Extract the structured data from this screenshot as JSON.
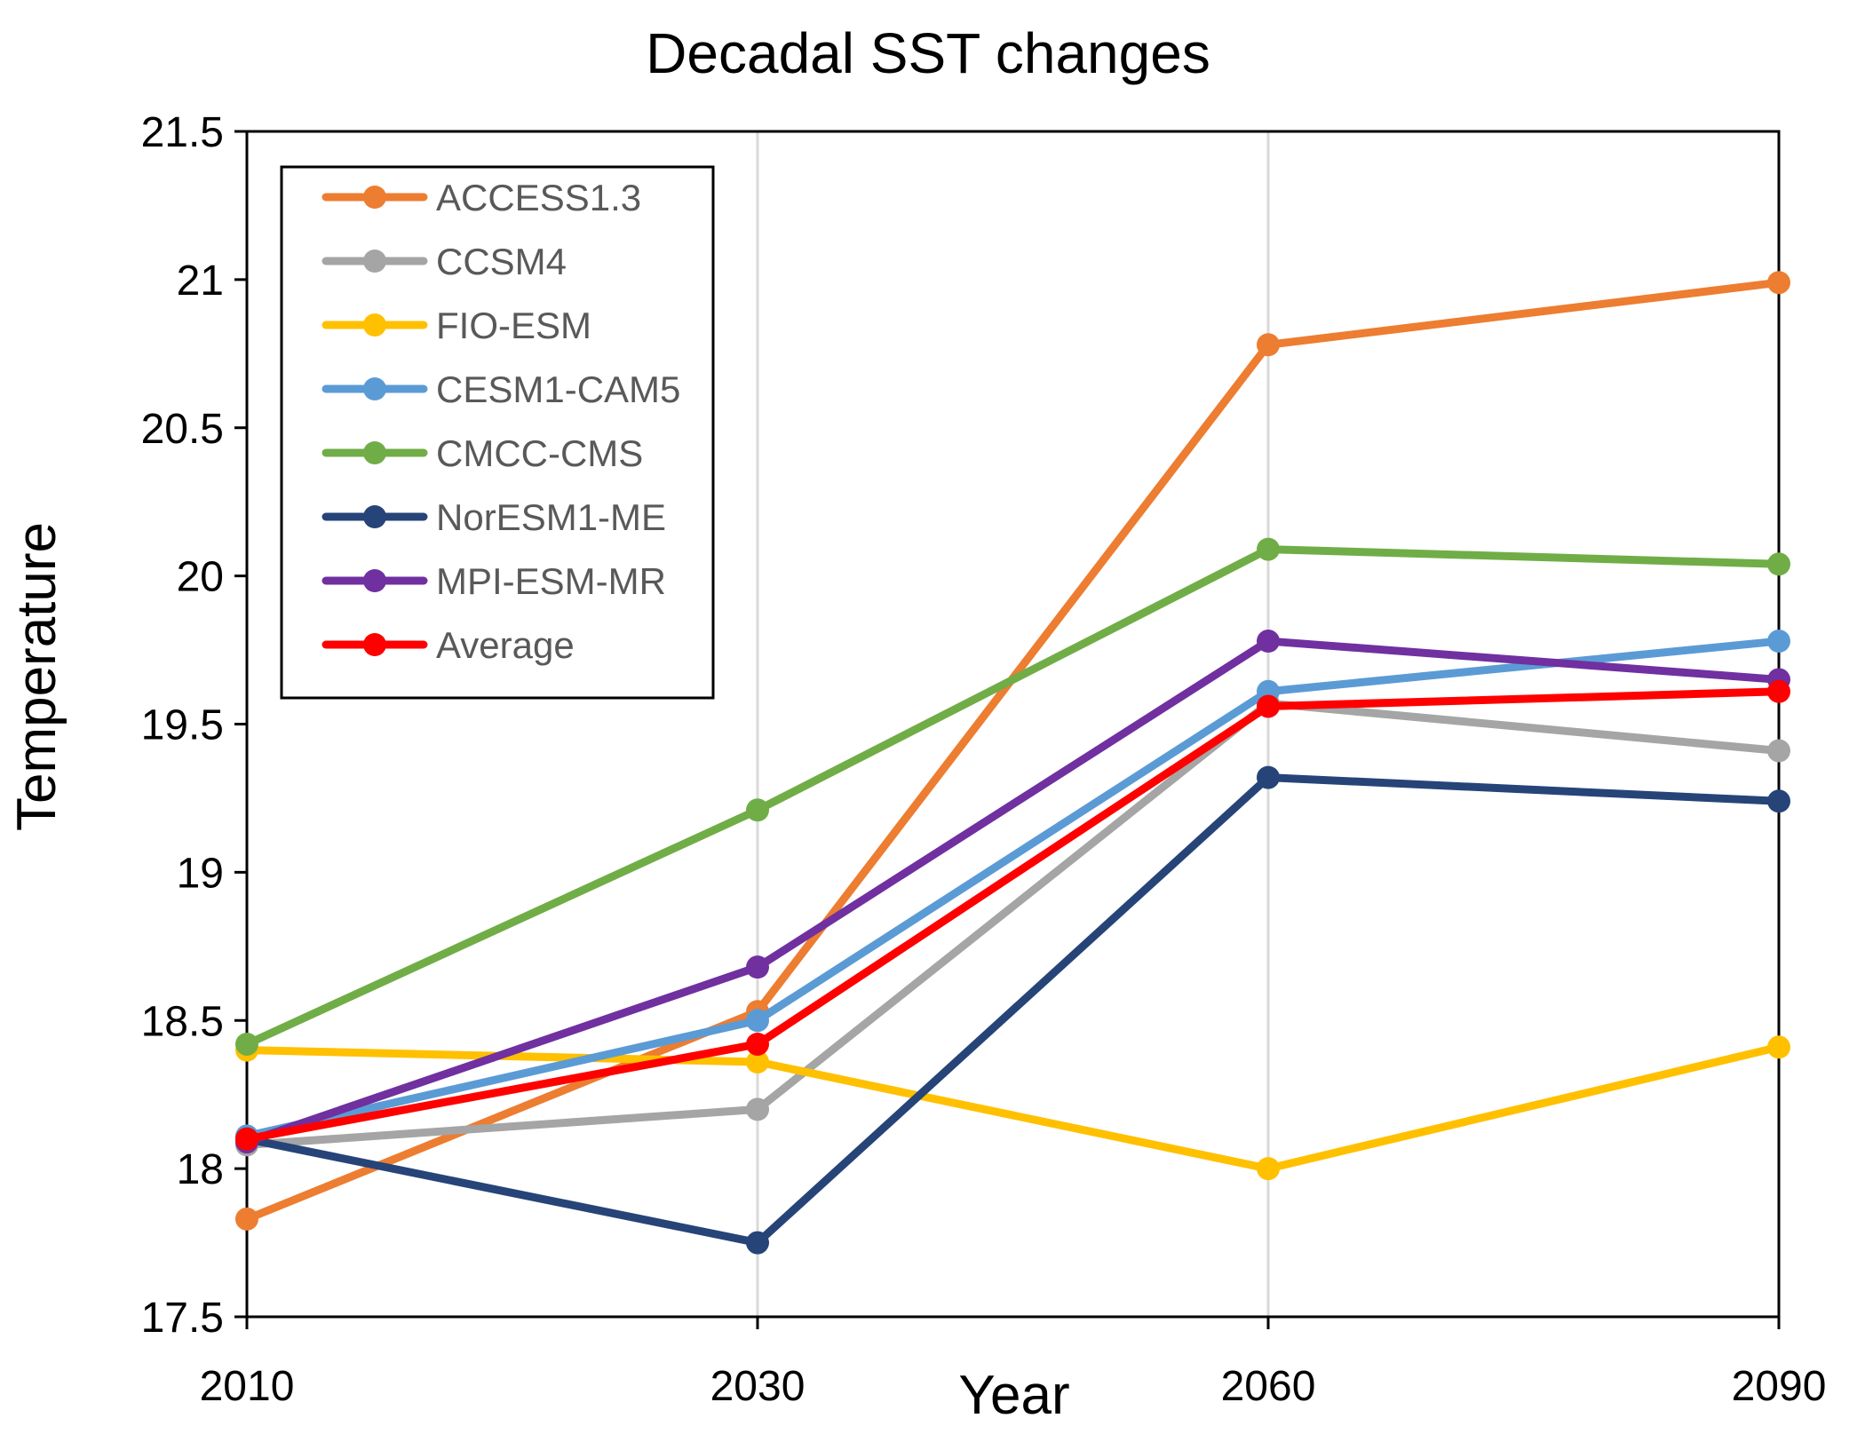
{
  "chart_data": {
    "type": "line",
    "title": "Decadal SST changes",
    "xlabel": "Year",
    "ylabel": "Temperature",
    "x": [
      "2010",
      "2030",
      "2060",
      "2090"
    ],
    "ylim": [
      17.5,
      21.5
    ],
    "yticks": [
      "17.5",
      "18",
      "18.5",
      "19",
      "19.5",
      "20",
      "20.5",
      "21",
      "21.5"
    ],
    "grid": "vertical",
    "legend_position": "top-left",
    "series": [
      {
        "name": "ACCESS1.3",
        "color": "#ED7D31",
        "values": [
          17.83,
          18.53,
          20.78,
          20.99
        ]
      },
      {
        "name": "CCSM4",
        "color": "#A5A5A5",
        "values": [
          18.08,
          18.2,
          19.57,
          19.41
        ]
      },
      {
        "name": "FIO-ESM",
        "color": "#FFC000",
        "values": [
          18.4,
          18.36,
          18.0,
          18.41
        ]
      },
      {
        "name": "CESM1-CAM5",
        "color": "#5B9BD5",
        "values": [
          18.11,
          18.5,
          19.61,
          19.78
        ]
      },
      {
        "name": "CMCC-CMS",
        "color": "#70AD47",
        "values": [
          18.42,
          19.21,
          20.09,
          20.04
        ]
      },
      {
        "name": "NorESM1-ME",
        "color": "#264478",
        "values": [
          18.1,
          17.75,
          19.32,
          19.24
        ]
      },
      {
        "name": "MPI-ESM-MR",
        "color": "#7030A0",
        "values": [
          18.09,
          18.68,
          19.78,
          19.65
        ]
      },
      {
        "name": "Average",
        "color": "#FF0000",
        "values": [
          18.1,
          18.42,
          19.56,
          19.61
        ]
      }
    ]
  }
}
